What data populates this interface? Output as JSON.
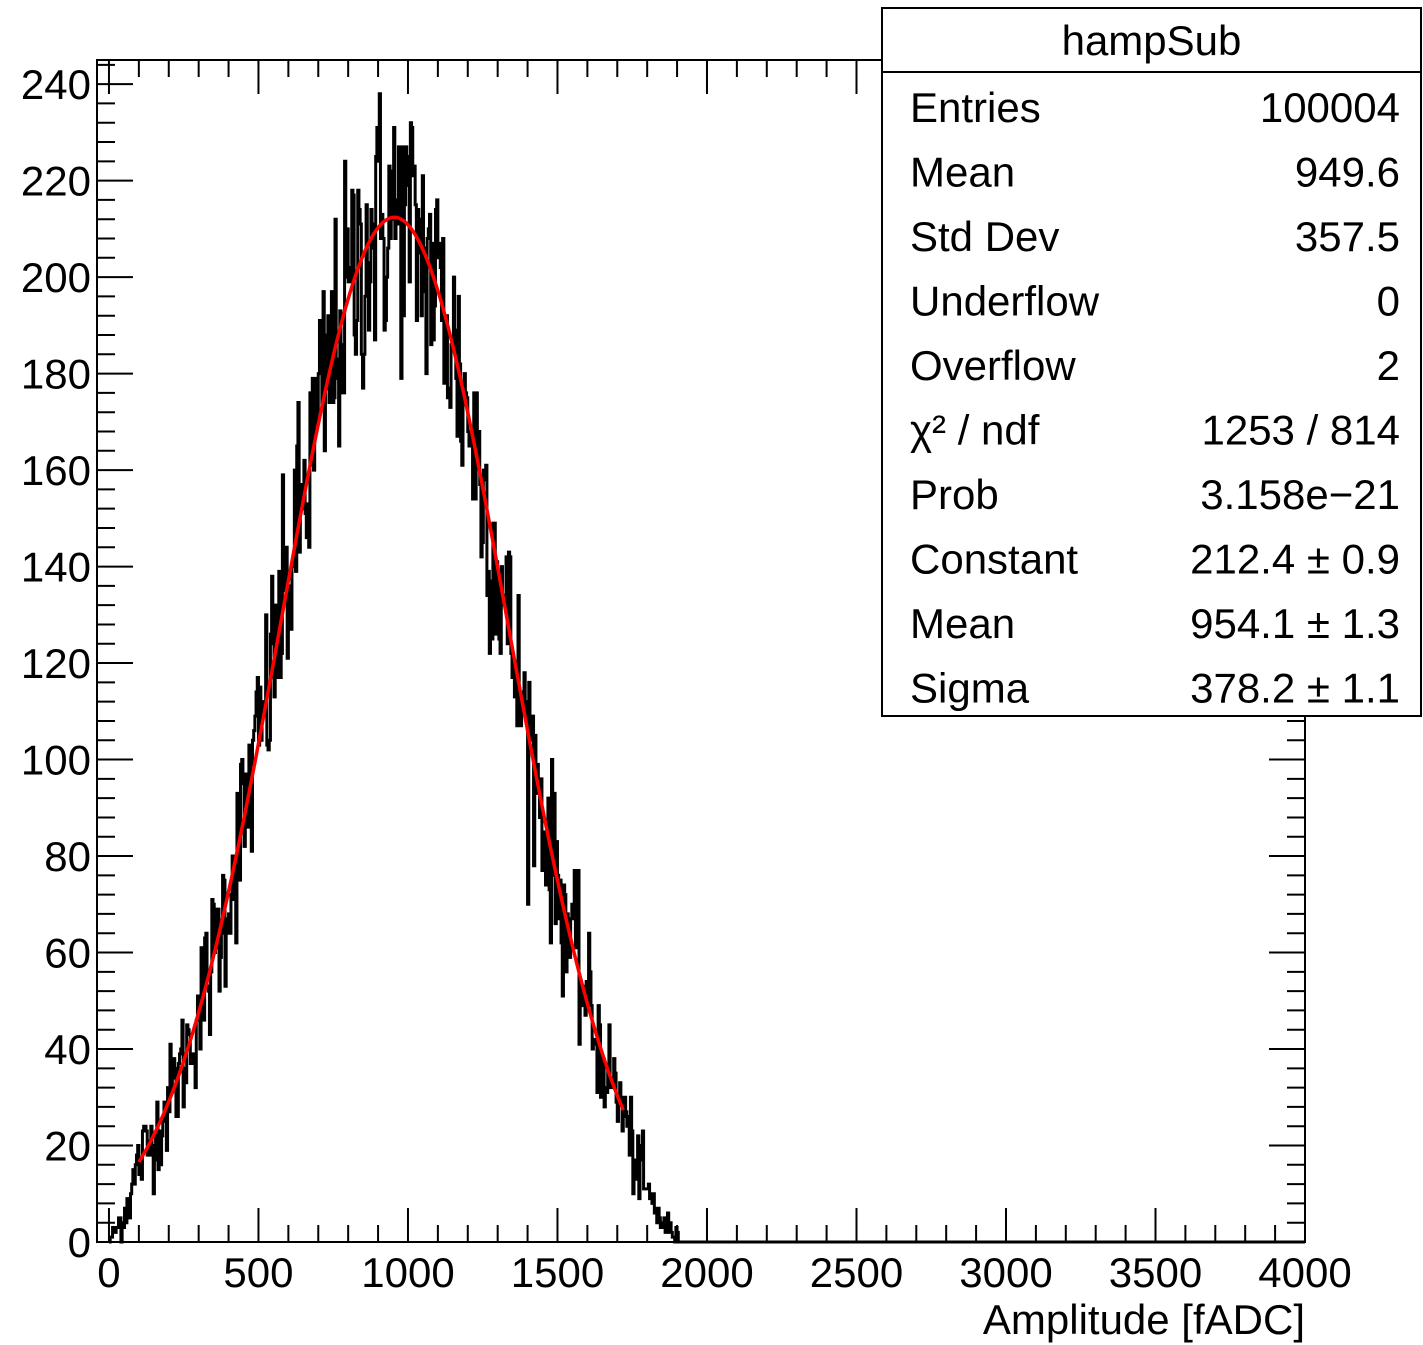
{
  "chart_data": {
    "type": "histogram",
    "title": "",
    "xlabel": "Amplitude [fADC]",
    "ylabel": "",
    "xlim": [
      -40,
      4000
    ],
    "ylim": [
      0,
      245
    ],
    "x_ticks": [
      0,
      500,
      1000,
      1500,
      2000,
      2500,
      3000,
      3500,
      4000
    ],
    "y_ticks": [
      0,
      20,
      40,
      60,
      80,
      100,
      120,
      140,
      160,
      180,
      200,
      220,
      240
    ],
    "grid": false,
    "histogram": {
      "bin_width": 4,
      "range": [
        0,
        4000
      ],
      "description_values": {
        "fit_function": "gaus",
        "constant": 212.4,
        "mean": 954.1,
        "sigma": 378.2
      }
    },
    "fit_curve": {
      "color": "#ff0000",
      "x_range": [
        100,
        1720
      ],
      "constant": 212.4,
      "mean": 954.1,
      "sigma": 378.2
    },
    "stats_box": {
      "title": "hampSub",
      "rows": [
        {
          "label": "Entries",
          "value": "100004"
        },
        {
          "label": "Mean",
          "value": "949.6"
        },
        {
          "label": "Std Dev",
          "value": "357.5"
        },
        {
          "label": "Underflow",
          "value": "0"
        },
        {
          "label": "Overflow",
          "value": "2"
        },
        {
          "label": "χ² / ndf",
          "value": "1253 / 814"
        },
        {
          "label": "Prob",
          "value": "3.158e−21"
        },
        {
          "label": "Constant",
          "value": "212.4 ± 0.9"
        },
        {
          "label": "Mean",
          "value": "954.1 ± 1.3"
        },
        {
          "label": "Sigma",
          "value": "378.2 ± 1.1"
        }
      ]
    },
    "colors": {
      "histogram": "#000000",
      "fit": "#ff0000",
      "background": "#ffffff"
    }
  }
}
